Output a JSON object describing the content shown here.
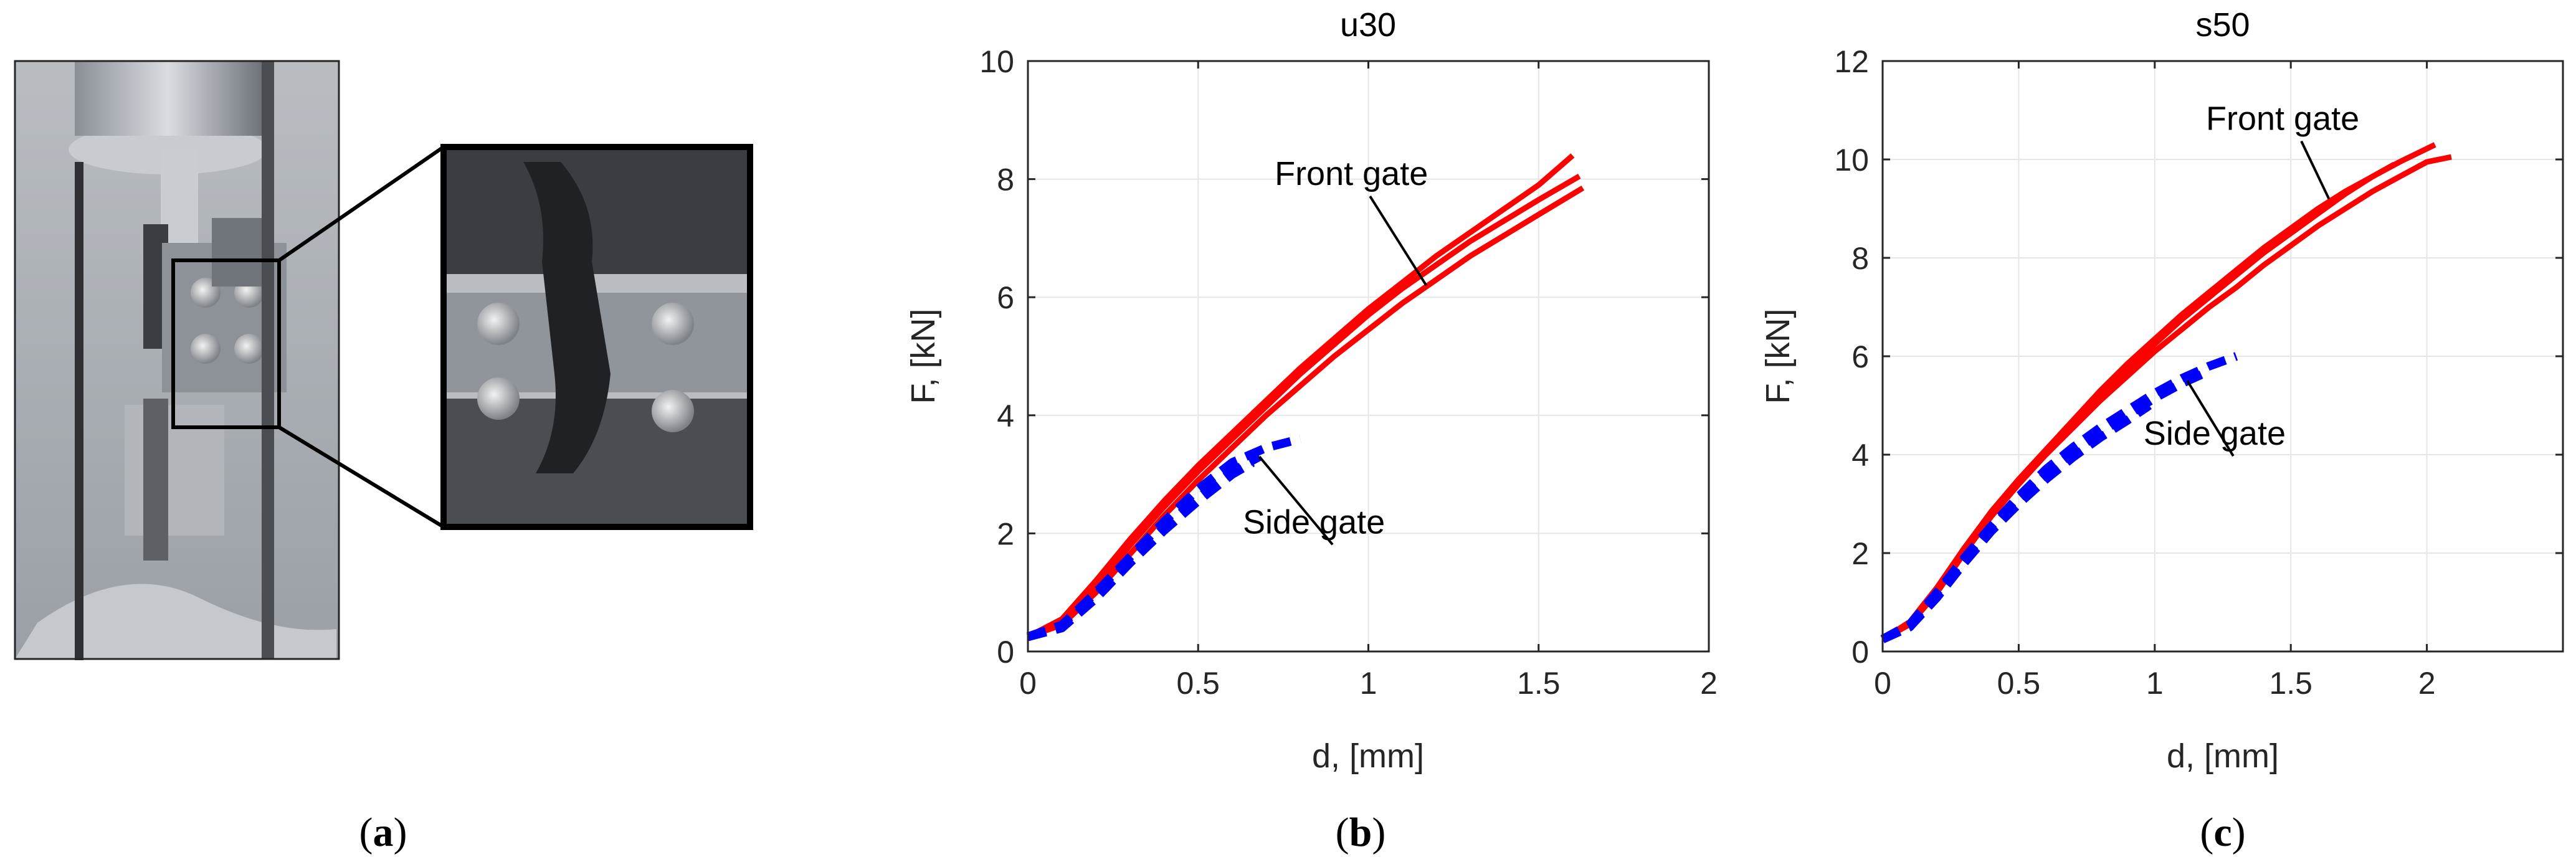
{
  "panel_labels": {
    "a": "a",
    "b": "b",
    "c": "c"
  },
  "photo": {
    "icon": "tensile-test-fixture-photo"
  },
  "colors": {
    "front": "#ff0000",
    "side": "#0000ff"
  },
  "chart_data": [
    {
      "type": "line",
      "title": "u30",
      "xlabel": "d, [mm]",
      "ylabel": "F, [kN]",
      "xlim": [
        0,
        2
      ],
      "ylim": [
        0,
        10
      ],
      "xticks": [
        0,
        0.5,
        1,
        1.5,
        2
      ],
      "yticks": [
        0,
        2,
        4,
        6,
        8,
        10
      ],
      "xtick_labels": [
        "0",
        "0.5",
        "1",
        "1.5",
        "2"
      ],
      "ytick_labels": [
        "0",
        "2",
        "4",
        "6",
        "8",
        "10"
      ],
      "grid": true,
      "annotations": [
        {
          "text": "Front gate",
          "at": [
            1.17,
            6.2
          ],
          "text_at": [
            0.95,
            7.9
          ]
        },
        {
          "text": "Side gate",
          "at": [
            0.68,
            3.3
          ],
          "text_at": [
            0.84,
            2.0
          ]
        }
      ],
      "series": [
        {
          "group": "front",
          "x": [
            0,
            0.1,
            0.2,
            0.3,
            0.4,
            0.5,
            0.6,
            0.7,
            0.8,
            0.9,
            1.0,
            1.1,
            1.2,
            1.3,
            1.4,
            1.5,
            1.6
          ],
          "y": [
            0.25,
            0.55,
            1.2,
            1.9,
            2.55,
            3.15,
            3.7,
            4.25,
            4.8,
            5.3,
            5.8,
            6.25,
            6.7,
            7.1,
            7.5,
            7.9,
            8.4
          ]
        },
        {
          "group": "front",
          "x": [
            0,
            0.1,
            0.2,
            0.3,
            0.4,
            0.5,
            0.6,
            0.7,
            0.8,
            0.9,
            1.0,
            1.1,
            1.2,
            1.3,
            1.4,
            1.5,
            1.62
          ],
          "y": [
            0.25,
            0.5,
            1.1,
            1.8,
            2.45,
            3.05,
            3.6,
            4.15,
            4.7,
            5.2,
            5.7,
            6.15,
            6.55,
            6.95,
            7.3,
            7.65,
            8.05
          ]
        },
        {
          "group": "front",
          "x": [
            0,
            0.1,
            0.2,
            0.3,
            0.4,
            0.5,
            0.6,
            0.7,
            0.8,
            0.9,
            1.0,
            1.1,
            1.2,
            1.3,
            1.4,
            1.5,
            1.63
          ],
          "y": [
            0.25,
            0.45,
            1.0,
            1.65,
            2.3,
            2.9,
            3.45,
            4.0,
            4.5,
            5.0,
            5.45,
            5.9,
            6.3,
            6.7,
            7.05,
            7.4,
            7.85
          ]
        },
        {
          "group": "side",
          "x": [
            0,
            0.1,
            0.2,
            0.3,
            0.4,
            0.5,
            0.6,
            0.7,
            0.8
          ],
          "y": [
            0.25,
            0.45,
            1.0,
            1.6,
            2.2,
            2.75,
            3.2,
            3.45,
            3.6
          ]
        },
        {
          "group": "side",
          "x": [
            0,
            0.1,
            0.2,
            0.3,
            0.4,
            0.5,
            0.6,
            0.68
          ],
          "y": [
            0.25,
            0.4,
            0.95,
            1.55,
            2.1,
            2.6,
            3.05,
            3.3
          ]
        },
        {
          "group": "side",
          "x": [
            0,
            0.1,
            0.2,
            0.3,
            0.4,
            0.5,
            0.6,
            0.66
          ],
          "y": [
            0.25,
            0.4,
            0.9,
            1.5,
            2.05,
            2.55,
            3.0,
            3.2
          ]
        }
      ]
    },
    {
      "type": "line",
      "title": "s50",
      "xlabel": "d, [mm]",
      "ylabel": "F, [kN]",
      "xlim": [
        0,
        2.5
      ],
      "ylim": [
        0,
        12
      ],
      "xticks": [
        0,
        0.5,
        1,
        1.5,
        2
      ],
      "yticks": [
        0,
        2,
        4,
        6,
        8,
        10,
        12
      ],
      "xtick_labels": [
        "0",
        "0.5",
        "1",
        "1.5",
        "2"
      ],
      "ytick_labels": [
        "0",
        "2",
        "4",
        "6",
        "8",
        "10",
        "12"
      ],
      "grid": true,
      "annotations": [
        {
          "text": "Front gate",
          "at": [
            1.64,
            9.2
          ],
          "text_at": [
            1.47,
            10.6
          ]
        },
        {
          "text": "Side gate",
          "at": [
            1.12,
            5.5
          ],
          "text_at": [
            1.22,
            4.2
          ]
        }
      ],
      "series": [
        {
          "group": "front",
          "x": [
            0,
            0.1,
            0.2,
            0.3,
            0.4,
            0.5,
            0.6,
            0.7,
            0.8,
            0.9,
            1.0,
            1.1,
            1.2,
            1.3,
            1.4,
            1.5,
            1.6,
            1.7,
            1.8,
            1.9,
            2.03
          ],
          "y": [
            0.25,
            0.6,
            1.3,
            2.1,
            2.85,
            3.5,
            4.1,
            4.7,
            5.3,
            5.85,
            6.35,
            6.85,
            7.3,
            7.75,
            8.2,
            8.6,
            9.0,
            9.35,
            9.65,
            9.95,
            10.3
          ]
        },
        {
          "group": "front",
          "x": [
            0,
            0.1,
            0.2,
            0.3,
            0.4,
            0.5,
            0.6,
            0.7,
            0.8,
            0.9,
            1.0,
            1.1,
            1.2,
            1.3,
            1.4,
            1.5,
            1.6,
            1.7,
            1.8,
            1.9,
            2.0,
            2.09
          ],
          "y": [
            0.25,
            0.55,
            1.2,
            2.0,
            2.75,
            3.4,
            4.0,
            4.55,
            5.1,
            5.6,
            6.1,
            6.55,
            7.0,
            7.4,
            7.85,
            8.25,
            8.65,
            9.0,
            9.35,
            9.65,
            9.95,
            10.05
          ]
        },
        {
          "group": "front",
          "x": [
            0,
            0.1,
            0.2,
            0.3,
            0.4,
            0.5,
            0.6,
            0.7,
            0.8,
            0.9,
            1.0,
            1.1,
            1.2,
            1.3,
            1.4,
            1.5,
            1.6,
            1.7,
            1.8,
            1.88
          ],
          "y": [
            0.25,
            0.6,
            1.3,
            2.1,
            2.8,
            3.45,
            4.05,
            4.65,
            5.2,
            5.75,
            6.25,
            6.75,
            7.2,
            7.65,
            8.1,
            8.5,
            8.9,
            9.3,
            9.65,
            9.9
          ]
        },
        {
          "group": "side",
          "x": [
            0,
            0.1,
            0.2,
            0.3,
            0.4,
            0.5,
            0.6,
            0.7,
            0.8,
            0.9,
            1.0,
            1.1,
            1.2,
            1.3
          ],
          "y": [
            0.25,
            0.55,
            1.2,
            1.9,
            2.55,
            3.15,
            3.7,
            4.15,
            4.55,
            4.9,
            5.25,
            5.55,
            5.8,
            6.0
          ]
        },
        {
          "group": "side",
          "x": [
            0,
            0.1,
            0.2,
            0.3,
            0.4,
            0.5,
            0.6,
            0.7,
            0.8,
            0.9,
            1.0,
            1.1,
            1.2
          ],
          "y": [
            0.25,
            0.5,
            1.15,
            1.85,
            2.5,
            3.1,
            3.6,
            4.05,
            4.45,
            4.8,
            5.15,
            5.45,
            5.7
          ]
        },
        {
          "group": "side",
          "x": [
            0,
            0.1,
            0.2,
            0.3,
            0.4,
            0.5,
            0.6,
            0.7,
            0.8,
            0.9,
            0.98
          ],
          "y": [
            0.25,
            0.5,
            1.1,
            1.8,
            2.45,
            3.0,
            3.5,
            3.95,
            4.35,
            4.7,
            5.0
          ]
        }
      ]
    }
  ]
}
